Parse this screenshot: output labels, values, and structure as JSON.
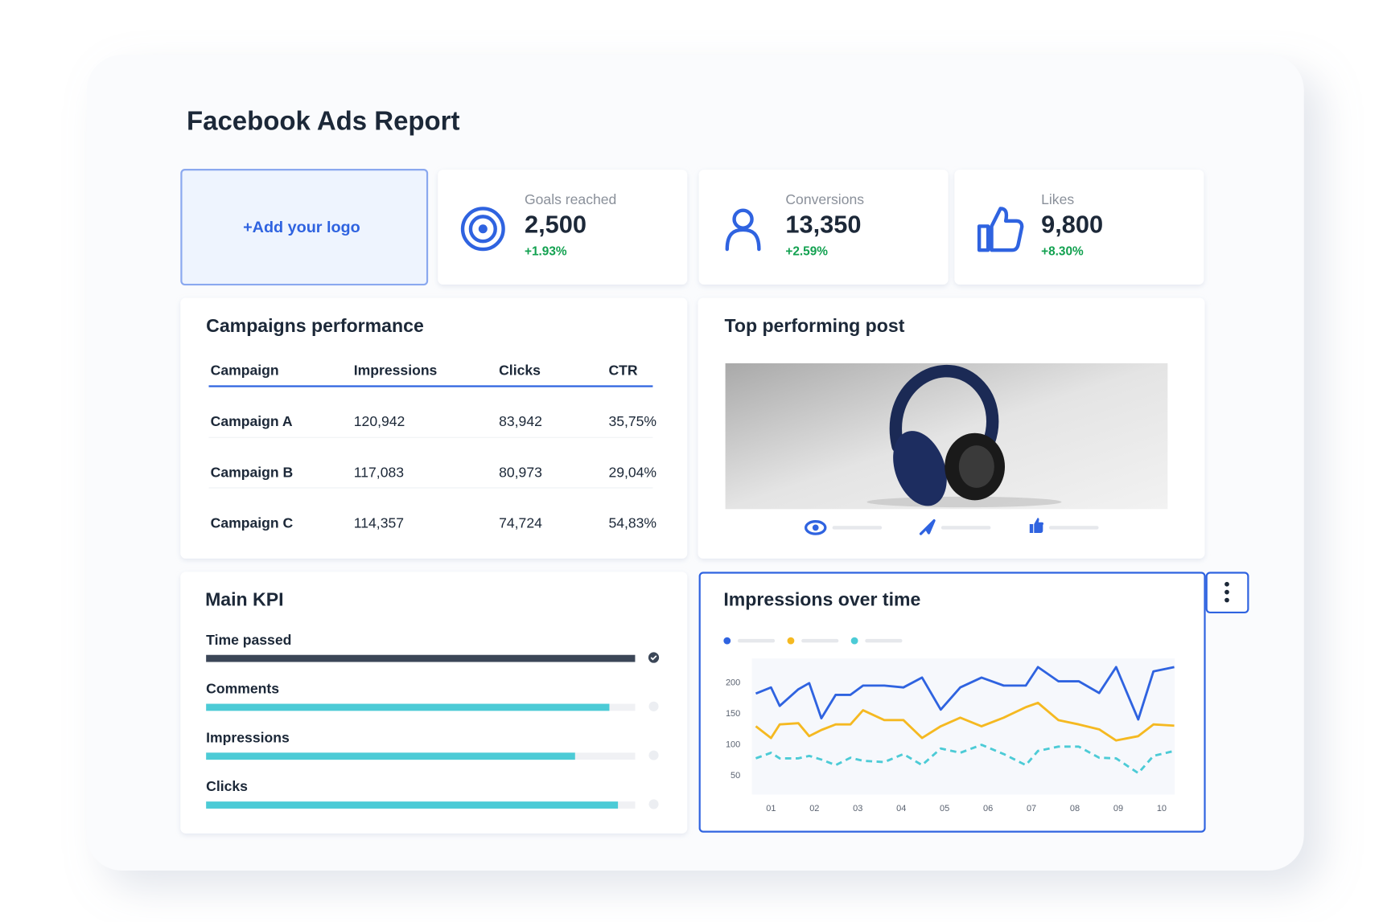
{
  "header": {
    "title": "Facebook Ads Report"
  },
  "logo": {
    "text": "+Add your logo"
  },
  "kpis": [
    {
      "label": "Goals reached",
      "value": "2,500",
      "change": "+1.93%"
    },
    {
      "label": "Conversions",
      "value": "13,350",
      "change": "+2.59%"
    },
    {
      "label": "Likes",
      "value": "9,800",
      "change": "+8.30%"
    }
  ],
  "campaigns": {
    "title": "Campaigns performance",
    "columns": [
      "Campaign",
      "Impressions",
      "Clicks",
      "CTR"
    ],
    "rows": [
      [
        "Campaign A",
        "120,942",
        "83,942",
        "35,75%"
      ],
      [
        "Campaign B",
        "117,083",
        "80,973",
        "29,04%"
      ],
      [
        "Campaign C",
        "114,357",
        "74,724",
        "54,83%"
      ]
    ]
  },
  "top_post": {
    "title": "Top performing post"
  },
  "main_kpi": {
    "title": "Main KPI",
    "items": [
      {
        "label": "Time passed",
        "progress": 100
      },
      {
        "label": "Comments",
        "progress": 94
      },
      {
        "label": "Impressions",
        "progress": 86
      },
      {
        "label": "Clicks",
        "progress": 96
      }
    ]
  },
  "chart_data": {
    "type": "line",
    "title": "Impressions over time",
    "x": [
      0.65,
      1,
      1.2,
      1.63,
      1.88,
      2.16,
      2.49,
      2.83,
      3.12,
      3.61,
      4.05,
      4.48,
      4.91,
      5.36,
      5.85,
      6.36,
      6.87,
      7.15,
      7.62,
      8.09,
      8.56,
      8.95,
      9.46,
      9.81,
      10.29
    ],
    "series": [
      {
        "color": "#2f63e0",
        "values": [
          183,
          193,
          163,
          190,
          200,
          143,
          181,
          181,
          196,
          196,
          193,
          209,
          157,
          193,
          209,
          196,
          196,
          226,
          203,
          203,
          184,
          226,
          141,
          219,
          226
        ]
      },
      {
        "color": "#f5b921",
        "values": [
          130,
          111,
          133,
          135,
          114,
          124,
          133,
          133,
          156,
          140,
          140,
          111,
          130,
          144,
          130,
          144,
          161,
          168,
          140,
          133,
          125,
          107,
          114,
          133,
          131
        ]
      },
      {
        "color": "#4ccbd6",
        "dashed": true,
        "values": [
          78,
          87,
          78,
          78,
          82,
          76,
          67,
          79,
          74,
          72,
          85,
          67,
          94,
          87,
          100,
          85,
          67,
          90,
          97,
          97,
          79,
          78,
          54,
          82,
          90
        ]
      }
    ],
    "xlim": [
      0.6,
      10.3
    ],
    "ylim": [
      20,
      240
    ],
    "xticks": [
      {
        "value": 1,
        "label": "01"
      },
      {
        "value": 2,
        "label": "02"
      },
      {
        "value": 3,
        "label": "03"
      },
      {
        "value": 4,
        "label": "04"
      },
      {
        "value": 5,
        "label": "05"
      },
      {
        "value": 6,
        "label": "06"
      },
      {
        "value": 7,
        "label": "07"
      },
      {
        "value": 8,
        "label": "08"
      },
      {
        "value": 9,
        "label": "09"
      },
      {
        "value": 10,
        "label": "10"
      }
    ],
    "yticks": [
      50,
      100,
      150,
      200
    ]
  }
}
